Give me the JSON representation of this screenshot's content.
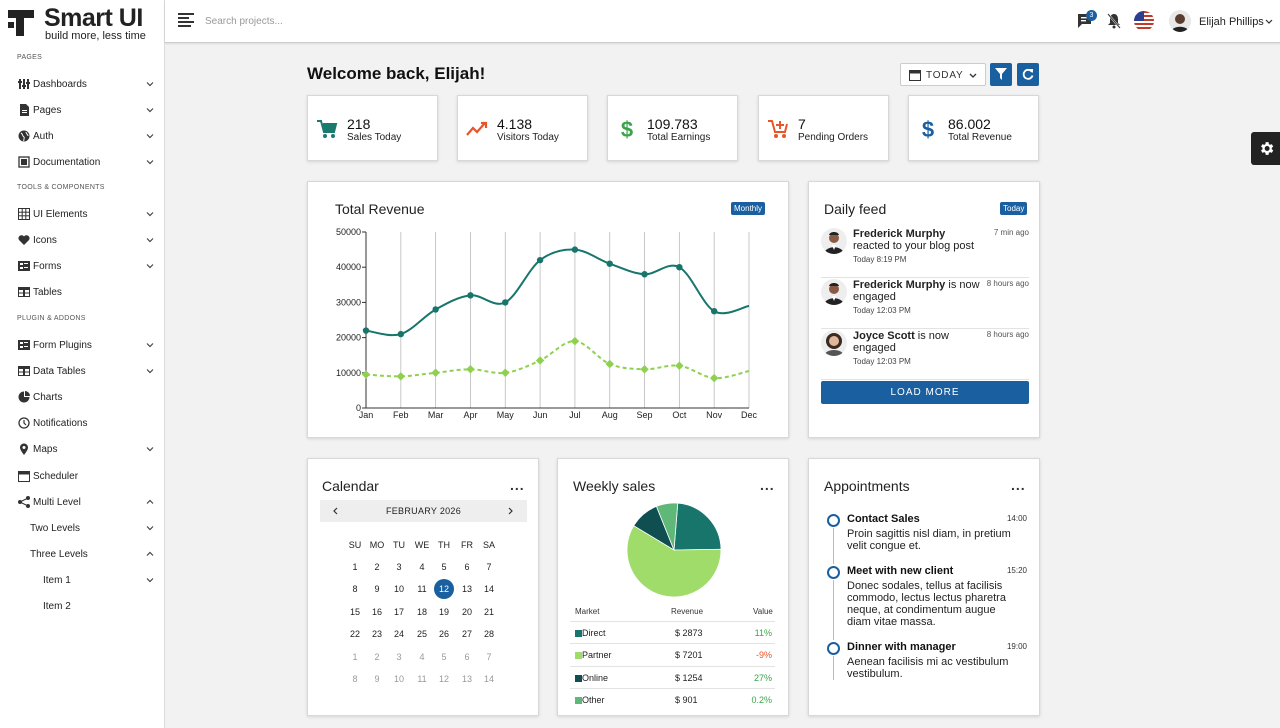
{
  "brand": {
    "name": "Smart UI",
    "tagline": "build more, less time"
  },
  "sidebar": {
    "sections": [
      {
        "title": "PAGES",
        "items": [
          {
            "label": "Dashboards",
            "icon": "dashboards-icon",
            "chevron": "down"
          },
          {
            "label": "Pages",
            "icon": "page-icon",
            "chevron": "down"
          },
          {
            "label": "Auth",
            "icon": "globe-icon",
            "chevron": "down"
          },
          {
            "label": "Documentation",
            "icon": "book-icon",
            "chevron": "down"
          }
        ]
      },
      {
        "title": "TOOLS & COMPONENTS",
        "items": [
          {
            "label": "UI Elements",
            "icon": "grid-icon",
            "chevron": "down"
          },
          {
            "label": "Icons",
            "icon": "heart-icon",
            "chevron": "down"
          },
          {
            "label": "Forms",
            "icon": "form-icon",
            "chevron": "down"
          },
          {
            "label": "Tables",
            "icon": "table-icon",
            "chevron": ""
          }
        ]
      },
      {
        "title": "PLUGIN & ADDONS",
        "items": [
          {
            "label": "Form Plugins",
            "icon": "form-icon",
            "chevron": "down"
          },
          {
            "label": "Data Tables",
            "icon": "table-icon",
            "chevron": "down"
          },
          {
            "label": "Charts",
            "icon": "pie-icon",
            "chevron": ""
          },
          {
            "label": "Notifications",
            "icon": "clock-icon",
            "chevron": ""
          },
          {
            "label": "Maps",
            "icon": "pin-icon",
            "chevron": "down"
          },
          {
            "label": "Scheduler",
            "icon": "calendar-icon",
            "chevron": ""
          },
          {
            "label": "Multi Level",
            "icon": "share-icon",
            "chevron": "up"
          },
          {
            "label": "Two Levels",
            "icon": "",
            "chevron": "down",
            "indent": 1
          },
          {
            "label": "Three Levels",
            "icon": "",
            "chevron": "up",
            "indent": 1
          },
          {
            "label": "Item 1",
            "icon": "",
            "chevron": "down",
            "indent": 2
          },
          {
            "label": "Item 2",
            "icon": "",
            "chevron": "",
            "indent": 2
          }
        ]
      }
    ]
  },
  "topbar": {
    "search_placeholder": "Search projects...",
    "chat_count": "3",
    "user_name": "Elijah Phillips"
  },
  "header": {
    "welcome": "Welcome back, Elijah!",
    "date_label": "TODAY"
  },
  "stats": [
    {
      "value": "218",
      "label": "Sales Today",
      "icon": "cart-icon",
      "color": "#1a7a6e"
    },
    {
      "value": "4.138",
      "label": "Visitors Today",
      "icon": "trend-icon",
      "color": "#e8552a"
    },
    {
      "value": "109.783",
      "label": "Total Earnings",
      "icon": "dollar-icon",
      "color": "#3aa44a"
    },
    {
      "value": "7",
      "label": "Pending Orders",
      "icon": "cart-add-icon",
      "color": "#e8552a"
    },
    {
      "value": "86.002",
      "label": "Total Revenue",
      "icon": "dollar-icon",
      "color": "#1a5fa0"
    }
  ],
  "revenue": {
    "title": "Total Revenue",
    "badge": "Monthly",
    "chart_data": {
      "type": "line",
      "categories": [
        "Jan",
        "Feb",
        "Mar",
        "Apr",
        "May",
        "Jun",
        "Jul",
        "Aug",
        "Sep",
        "Oct",
        "Nov",
        "Dec"
      ],
      "series": [
        {
          "values": [
            22000,
            21000,
            28000,
            32000,
            30000,
            42000,
            45000,
            41000,
            38000,
            40000,
            27500,
            29000
          ],
          "color": "#17756b",
          "style": "solid"
        },
        {
          "values": [
            9500,
            9000,
            10000,
            11000,
            10000,
            13500,
            19000,
            12500,
            11000,
            12000,
            8500,
            10500
          ],
          "color": "#8fd14f",
          "style": "dashed"
        }
      ],
      "ylim": [
        0,
        50000
      ],
      "yticks": [
        "0",
        "10000",
        "20000",
        "30000",
        "40000",
        "50000"
      ],
      "grid": "vertical"
    }
  },
  "feed": {
    "title": "Daily feed",
    "badge": "Today",
    "items": [
      {
        "name": "Frederick Murphy",
        "action": " reacted to your blog post",
        "ago": "7 min ago",
        "time": "Today 8:19 PM"
      },
      {
        "name": "Frederick Murphy",
        "action": " is now engaged",
        "ago": "8 hours ago",
        "time": "Today 12:03 PM"
      },
      {
        "name": "Joyce Scott",
        "action": " is now engaged",
        "ago": "8 hours ago",
        "time": "Today 12:03 PM"
      }
    ],
    "load_more": "LOAD MORE"
  },
  "calendar": {
    "title": "Calendar",
    "month": "FEBRUARY 2026",
    "weekdays": [
      "SU",
      "MO",
      "TU",
      "WE",
      "TH",
      "FR",
      "SA"
    ],
    "weeks": [
      [
        "1",
        "2",
        "3",
        "4",
        "5",
        "6",
        "7"
      ],
      [
        "8",
        "9",
        "10",
        "11",
        "12",
        "13",
        "14"
      ],
      [
        "15",
        "16",
        "17",
        "18",
        "19",
        "20",
        "21"
      ],
      [
        "22",
        "23",
        "24",
        "25",
        "26",
        "27",
        "28"
      ],
      [
        "1",
        "2",
        "3",
        "4",
        "5",
        "6",
        "7"
      ],
      [
        "8",
        "9",
        "10",
        "11",
        "12",
        "13",
        "14"
      ]
    ],
    "selected": "12"
  },
  "weekly": {
    "title": "Weekly sales",
    "headers": [
      "Market",
      "Revenue",
      "Value"
    ],
    "rows": [
      {
        "market": "Direct",
        "revenue": "$ 2873",
        "value": "11%",
        "color": "#17756b",
        "vcolor": "#3aa44a"
      },
      {
        "market": "Partner",
        "revenue": "$ 7201",
        "value": "-9%",
        "color": "#9fdc6a",
        "vcolor": "#e8552a"
      },
      {
        "market": "Online",
        "revenue": "$ 1254",
        "value": "27%",
        "color": "#0f4f52",
        "vcolor": "#3aa44a"
      },
      {
        "market": "Other",
        "revenue": "$ 901",
        "value": "0.2%",
        "color": "#5fb878",
        "vcolor": "#3aa44a"
      }
    ],
    "chart_data": {
      "type": "pie",
      "categories": [
        "Direct",
        "Partner",
        "Online",
        "Other"
      ],
      "values": [
        2873,
        7201,
        1254,
        901
      ],
      "colors": [
        "#17756b",
        "#9fdc6a",
        "#0f4f52",
        "#5fb878"
      ]
    }
  },
  "appointments": {
    "title": "Appointments",
    "items": [
      {
        "title": "Contact Sales",
        "time": "14:00",
        "desc": "Proin sagittis nisl diam, in pretium velit congue et."
      },
      {
        "title": "Meet with new client",
        "time": "15:20",
        "desc": "Donec sodales, tellus at facilisis commodo, lectus lectus pharetra neque, at condimentum augue diam vitae massa."
      },
      {
        "title": "Dinner with manager",
        "time": "19:00",
        "desc": "Aenean facilisis mi ac vestibulum vestibulum."
      }
    ]
  }
}
